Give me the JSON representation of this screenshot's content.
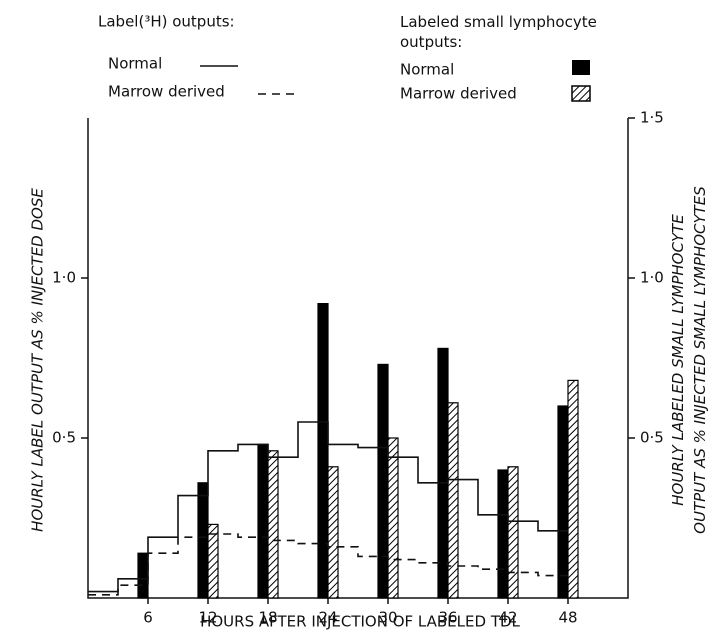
{
  "chart_data": {
    "type": "bar",
    "xlabel": "HOURS AFTER INJECTION OF LABELED TDL",
    "ylabel": "HOURLY LABEL OUTPUT AS % INJECTED DOSE",
    "y2label": "HOURLY LABELED SMALL LYMPHOCYTE OUTPUT AS % INJECTED SMALL LYMPHOCYTES",
    "legend_line_title": "Label(³H) outputs:",
    "legend_bar_title": "Labeled small lymphocyte outputs:",
    "xlim": [
      0,
      54
    ],
    "xticks": [
      6,
      12,
      18,
      24,
      30,
      36,
      42,
      48
    ],
    "ylim": [
      0,
      1.5
    ],
    "yticks": [
      {
        "value": 0.5,
        "label": "0·5"
      },
      {
        "value": 1,
        "label": "1·0"
      }
    ],
    "y2lim": [
      0,
      1.5
    ],
    "y2ticks": [
      {
        "value": 0.5,
        "label": "0·5"
      },
      {
        "value": 1,
        "label": "1·0"
      },
      {
        "value": 1.5,
        "label": "1·5"
      }
    ],
    "step_edges": [
      0,
      3,
      6,
      9,
      12,
      15,
      18,
      21,
      24,
      27,
      30,
      33,
      36,
      39,
      42,
      45,
      48
    ],
    "lines": [
      {
        "name": "Normal",
        "style": "solid",
        "color": "#111",
        "values": [
          0.02,
          0.06,
          0.19,
          0.32,
          0.46,
          0.48,
          0.44,
          0.55,
          0.48,
          0.47,
          0.44,
          0.36,
          0.37,
          0.26,
          0.24,
          0.21
        ]
      },
      {
        "name": "Marrow derived",
        "style": "dashed",
        "color": "#111",
        "values": [
          0.01,
          0.04,
          0.14,
          0.19,
          0.2,
          0.19,
          0.18,
          0.17,
          0.16,
          0.13,
          0.12,
          0.11,
          0.1,
          0.09,
          0.08,
          0.07
        ]
      }
    ],
    "bar_x": [
      6,
      12,
      18,
      24,
      30,
      36,
      42,
      48
    ],
    "bars": [
      {
        "name": "Normal",
        "pattern": "solid",
        "color": "#000",
        "values": [
          0.14,
          0.36,
          0.48,
          0.92,
          0.73,
          0.78,
          0.4,
          0.6
        ]
      },
      {
        "name": "Marrow derived",
        "pattern": "hatched",
        "color": "#000",
        "values": [
          null,
          0.23,
          0.46,
          0.41,
          0.5,
          0.61,
          0.41,
          0.68
        ]
      }
    ]
  }
}
